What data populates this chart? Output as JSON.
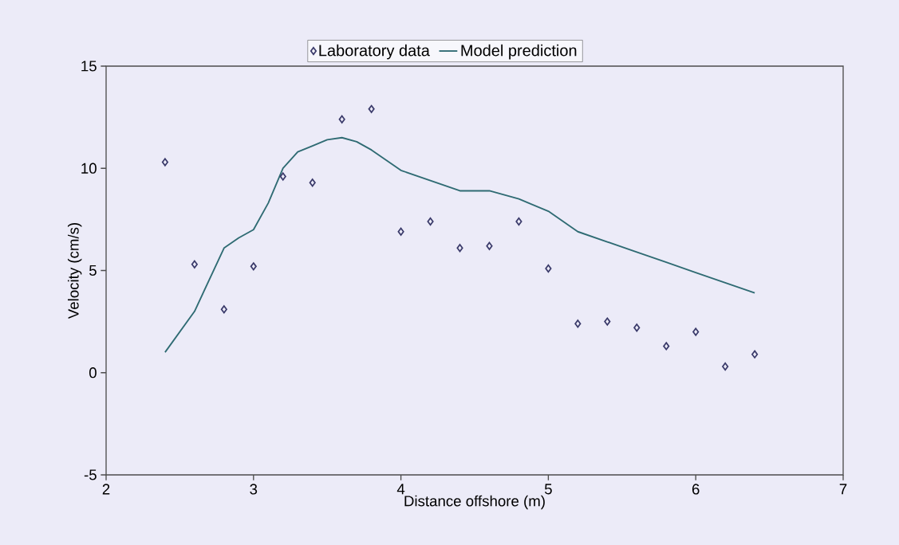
{
  "chart_data": {
    "type": "scatter",
    "xlabel": "Distance offshore (m)",
    "ylabel": "Velocity (cm/s)",
    "xlim": [
      2,
      7
    ],
    "ylim": [
      -5,
      15
    ],
    "xticks": [
      2,
      3,
      4,
      5,
      6,
      7
    ],
    "yticks": [
      -5,
      0,
      5,
      10,
      15
    ],
    "grid": false,
    "legend": "top",
    "series": [
      {
        "name": "Laboratory data",
        "marker": "diamond",
        "color": "#3a3a6a",
        "x": [
          2.4,
          2.6,
          2.8,
          3.0,
          3.2,
          3.4,
          3.6,
          3.8,
          4.0,
          4.2,
          4.4,
          4.6,
          4.8,
          5.0,
          5.2,
          5.4,
          5.6,
          5.8,
          6.0,
          6.2,
          6.4
        ],
        "values": [
          10.3,
          5.3,
          3.1,
          5.2,
          9.6,
          9.3,
          12.4,
          12.9,
          6.9,
          7.4,
          6.1,
          6.2,
          7.4,
          5.1,
          2.4,
          2.5,
          2.2,
          1.3,
          2.0,
          0.3,
          0.9
        ]
      },
      {
        "name": "Model prediction",
        "type": "line",
        "marker": "none",
        "line_style": "solid",
        "color": "#2f6b73",
        "x": [
          2.4,
          2.6,
          2.8,
          2.9,
          3.0,
          3.1,
          3.2,
          3.3,
          3.4,
          3.5,
          3.6,
          3.7,
          3.8,
          3.9,
          4.0,
          4.2,
          4.4,
          4.6,
          4.8,
          5.0,
          5.2,
          5.4,
          5.6,
          5.8,
          6.0,
          6.2,
          6.4
        ],
        "values": [
          1.0,
          3.0,
          6.1,
          6.6,
          7.0,
          8.3,
          10.0,
          10.8,
          11.1,
          11.4,
          11.5,
          11.3,
          10.9,
          10.4,
          9.9,
          9.4,
          8.9,
          8.9,
          8.5,
          7.9,
          6.9,
          6.4,
          5.9,
          5.4,
          4.9,
          4.4,
          3.9
        ]
      }
    ]
  }
}
